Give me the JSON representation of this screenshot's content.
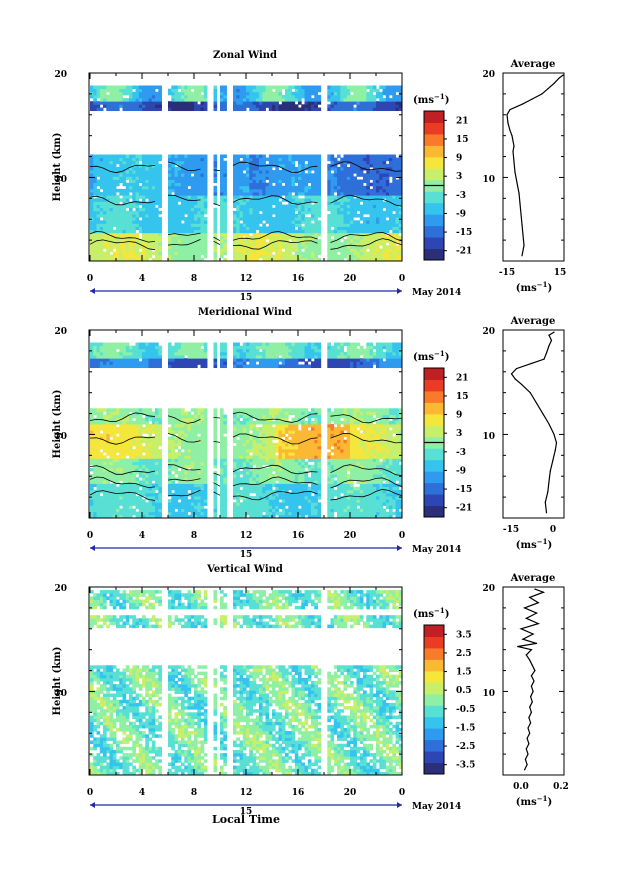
{
  "colors": {
    "scale": [
      "#2b2f7a",
      "#2e45b4",
      "#2f6fd9",
      "#2f9bf0",
      "#35c4ee",
      "#57e0d3",
      "#8ff0a5",
      "#c7ef6a",
      "#f4e63c",
      "#fbb833",
      "#f87a2a",
      "#ea3b25",
      "#c01f23"
    ],
    "gap": "#ffffff",
    "axis": "#000000",
    "arrow": "#1f2aa8"
  },
  "xaxis": {
    "ticks": [
      "0",
      "4",
      "8",
      "12",
      "16",
      "20",
      "0"
    ],
    "date_label": "15",
    "month_label": "May 2014",
    "title": "Local Time",
    "range_hours": [
      0,
      24
    ]
  },
  "yaxis": {
    "title": "Height (km)",
    "ticks": [
      "10",
      "20"
    ],
    "range_km": [
      2,
      20
    ]
  },
  "chart_data": [
    {
      "type": "heatmap",
      "title": "Zonal Wind",
      "variable": "zonal",
      "colorbar": {
        "unit": "(ms-1)",
        "ticks": [
          "21",
          "15",
          "9",
          "3",
          "-3",
          "-9",
          "-15",
          "-21"
        ],
        "range": [
          -24,
          24
        ],
        "zero_line": true
      },
      "profile": {
        "title": "Average",
        "xlabel": "(ms-1)",
        "xticks": [
          "-15",
          "15"
        ],
        "xlim": [
          -15,
          15
        ],
        "points": [
          [
            -6,
            2.5
          ],
          [
            -5,
            3.5
          ],
          [
            -5.5,
            4.5
          ],
          [
            -6,
            5.5
          ],
          [
            -6.5,
            6.5
          ],
          [
            -7,
            7.5
          ],
          [
            -7.5,
            8.5
          ],
          [
            -8.5,
            9.5
          ],
          [
            -9.5,
            10.5
          ],
          [
            -10,
            11.5
          ],
          [
            -10.5,
            12.5
          ],
          [
            -10,
            13
          ],
          [
            -11,
            14
          ],
          [
            -12,
            14.5
          ],
          [
            -13,
            15.2
          ],
          [
            -13.5,
            16
          ],
          [
            -12,
            16.5
          ],
          [
            -6,
            17
          ],
          [
            -1,
            17.5
          ],
          [
            4,
            18
          ],
          [
            7,
            18.5
          ],
          [
            10,
            19
          ],
          [
            12.5,
            19.5
          ],
          [
            14.5,
            19.8
          ]
        ]
      }
    },
    {
      "type": "heatmap",
      "title": "Meridional Wind",
      "variable": "meridional",
      "colorbar": {
        "unit": "(ms-1)",
        "ticks": [
          "21",
          "15",
          "9",
          "3",
          "-3",
          "-9",
          "-15",
          "-21"
        ],
        "range": [
          -24,
          24
        ],
        "zero_line": true
      },
      "profile": {
        "title": "Average",
        "xlabel": "(ms-1)",
        "xticks": [
          "-15",
          "0"
        ],
        "xlim": [
          -20,
          4
        ],
        "points": [
          [
            -3,
            2.5
          ],
          [
            -3.5,
            3.5
          ],
          [
            -2.5,
            4.5
          ],
          [
            -2,
            5.5
          ],
          [
            -1.5,
            6.5
          ],
          [
            -0.5,
            7.5
          ],
          [
            0.5,
            8.5
          ],
          [
            1,
            9.2
          ],
          [
            0,
            10
          ],
          [
            -2,
            11
          ],
          [
            -4.5,
            12
          ],
          [
            -7,
            13
          ],
          [
            -9.5,
            14
          ],
          [
            -13,
            14.8
          ],
          [
            -15.5,
            15.3
          ],
          [
            -17,
            15.8
          ],
          [
            -15,
            16.3
          ],
          [
            -9,
            16.8
          ],
          [
            -4,
            17.2
          ],
          [
            -3,
            17.8
          ],
          [
            -2,
            18.5
          ],
          [
            -1,
            19
          ],
          [
            -2,
            19.5
          ],
          [
            0,
            19.8
          ]
        ]
      }
    },
    {
      "type": "heatmap",
      "title": "Vertical Wind",
      "variable": "vertical",
      "colorbar": {
        "unit": "(ms-1)",
        "ticks": [
          "3.5",
          "2.5",
          "1.5",
          "0.5",
          "-0.5",
          "-1.5",
          "-2.5",
          "-3.5"
        ],
        "range": [
          -4,
          4
        ],
        "zero_line": false
      },
      "profile": {
        "title": "Average",
        "xlabel": "(ms-1)",
        "xticks": [
          "0.0",
          "0.2"
        ],
        "xlim": [
          -0.1,
          0.25
        ],
        "points": [
          [
            0.02,
            2.5
          ],
          [
            0.035,
            3
          ],
          [
            0.025,
            3.5
          ],
          [
            0.04,
            4
          ],
          [
            0.03,
            4.5
          ],
          [
            0.045,
            5
          ],
          [
            0.035,
            5.5
          ],
          [
            0.05,
            6
          ],
          [
            0.04,
            6.5
          ],
          [
            0.055,
            7
          ],
          [
            0.045,
            7.5
          ],
          [
            0.06,
            8
          ],
          [
            0.05,
            8.5
          ],
          [
            0.065,
            9
          ],
          [
            0.055,
            9.5
          ],
          [
            0.07,
            10
          ],
          [
            0.06,
            10.5
          ],
          [
            0.075,
            11
          ],
          [
            0.06,
            11.5
          ],
          [
            0.08,
            12
          ],
          [
            0.065,
            12.5
          ],
          [
            0.05,
            13
          ],
          [
            0.03,
            13.5
          ],
          [
            0.06,
            14
          ],
          [
            -0.02,
            14.3
          ],
          [
            0.09,
            14.6
          ],
          [
            0.01,
            15
          ],
          [
            0.07,
            15.5
          ],
          [
            0.0,
            16
          ],
          [
            0.1,
            16.5
          ],
          [
            0.03,
            17
          ],
          [
            0.09,
            17.5
          ],
          [
            0.02,
            18
          ],
          [
            0.1,
            18.5
          ],
          [
            0.05,
            19
          ],
          [
            0.13,
            19.5
          ],
          [
            0.08,
            19.8
          ]
        ]
      }
    }
  ]
}
